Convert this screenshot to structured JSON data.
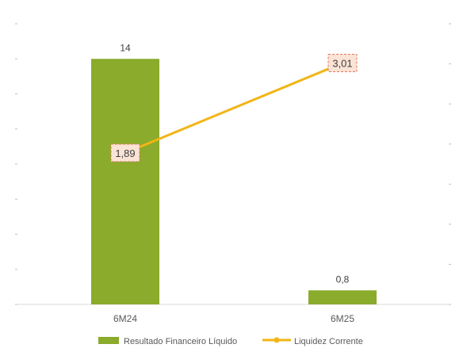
{
  "chart_data": {
    "type": "bar",
    "categories": [
      "6M24",
      "6M25"
    ],
    "series": [
      {
        "name": "Resultado Financeiro Líquido",
        "kind": "bar",
        "axis": "left",
        "values": [
          14,
          0.8
        ],
        "labels": [
          "14",
          "0,8"
        ],
        "color": "#8aab2c"
      },
      {
        "name": "Liquidez Corrente",
        "kind": "line",
        "axis": "right",
        "values": [
          1.89,
          3.01
        ],
        "labels": [
          "1,89",
          "3,01"
        ],
        "color": "#f2b516",
        "label_fill": "#fbe3d6",
        "label_border": "#e07a5f"
      }
    ],
    "ylim_left": [
      0,
      16
    ],
    "ylim_right": [
      0,
      3.5
    ],
    "legend_position": "bottom",
    "grid": false
  }
}
